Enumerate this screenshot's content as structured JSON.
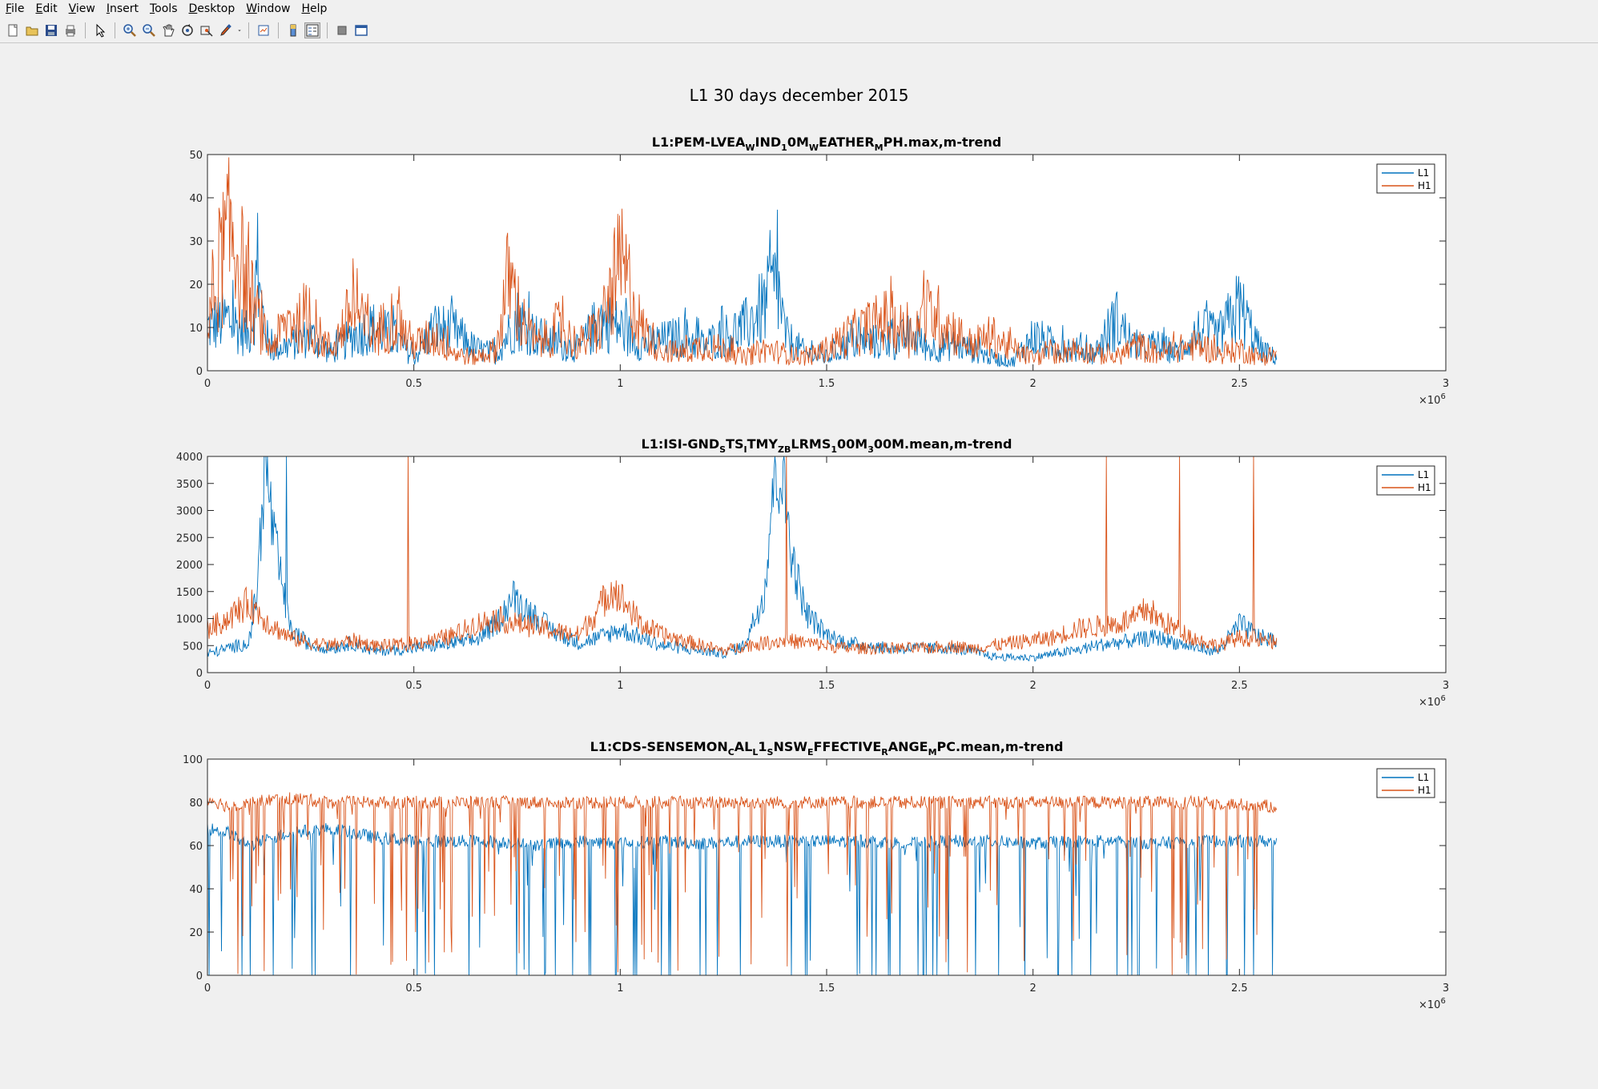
{
  "menu": [
    "File",
    "Edit",
    "View",
    "Insert",
    "Tools",
    "Desktop",
    "Window",
    "Help"
  ],
  "toolbar": [
    "new-figure-icon",
    "open-file-icon",
    "save-icon",
    "print-icon",
    "edit-plot-arrow-icon",
    "zoom-in-icon",
    "zoom-out-icon",
    "pan-hand-icon",
    "rotate-3d-icon",
    "data-cursor-icon",
    "brush-icon",
    "brush-dropdown-icon",
    "link-plot-icon",
    "insert-colorbar-icon",
    "insert-legend-icon",
    "hide-plot-tools-icon",
    "show-plot-tools-icon"
  ],
  "figure_title": "L1 30 days december 2015",
  "colors": {
    "L1": "#0072BD",
    "H1": "#D95319"
  },
  "chart_data": [
    {
      "type": "line",
      "title_parts": [
        {
          "t": "L1:PEM-LVEA"
        },
        {
          "t": "W",
          "sub": true
        },
        {
          "t": "IND"
        },
        {
          "t": "1",
          "sub": true
        },
        {
          "t": "0M"
        },
        {
          "t": "W",
          "sub": true
        },
        {
          "t": "EATHER"
        },
        {
          "t": "M",
          "sub": true
        },
        {
          "t": "PH.max,m-trend"
        }
      ],
      "xlim": [
        0,
        3
      ],
      "x_exponent": "6",
      "ylim": [
        0,
        50
      ],
      "xticks": [
        "0",
        "0.5",
        "1",
        "1.5",
        "2",
        "2.5",
        "3"
      ],
      "yticks": [
        "0",
        "10",
        "20",
        "30",
        "40",
        "50"
      ],
      "legend": [
        "L1",
        "H1"
      ],
      "legend_position": "top-right",
      "x_data_end": 2.59,
      "series": [
        {
          "name": "L1",
          "x": [
            0,
            0.05,
            0.1,
            0.12,
            0.15,
            0.2,
            0.25,
            0.3,
            0.35,
            0.4,
            0.45,
            0.5,
            0.55,
            0.6,
            0.65,
            0.7,
            0.75,
            0.8,
            0.85,
            0.9,
            0.95,
            1.0,
            1.05,
            1.1,
            1.15,
            1.2,
            1.25,
            1.3,
            1.35,
            1.38,
            1.4,
            1.45,
            1.5,
            1.55,
            1.6,
            1.65,
            1.7,
            1.75,
            1.8,
            1.85,
            1.9,
            1.95,
            2.0,
            2.05,
            2.1,
            2.15,
            2.2,
            2.25,
            2.3,
            2.35,
            2.4,
            2.45,
            2.5,
            2.55,
            2.59
          ],
          "y": [
            10,
            12,
            8,
            20,
            5,
            6,
            8,
            4,
            8,
            10,
            8,
            3,
            10,
            9,
            5,
            4,
            12,
            8,
            6,
            5,
            12,
            10,
            6,
            7,
            8,
            6,
            8,
            10,
            15,
            20,
            8,
            4,
            3,
            6,
            7,
            6,
            8,
            5,
            6,
            5,
            3,
            2,
            8,
            6,
            5,
            4,
            12,
            5,
            6,
            4,
            9,
            8,
            15,
            5,
            3
          ]
        },
        {
          "name": "H1",
          "x": [
            0,
            0.03,
            0.06,
            0.1,
            0.15,
            0.2,
            0.25,
            0.3,
            0.35,
            0.4,
            0.45,
            0.5,
            0.55,
            0.6,
            0.65,
            0.7,
            0.73,
            0.76,
            0.8,
            0.85,
            0.9,
            0.95,
            1.0,
            1.02,
            1.05,
            1.1,
            1.15,
            1.2,
            1.25,
            1.3,
            1.35,
            1.4,
            1.45,
            1.5,
            1.55,
            1.6,
            1.65,
            1.7,
            1.75,
            1.8,
            1.85,
            1.9,
            1.95,
            2.0,
            2.05,
            2.1,
            2.15,
            2.2,
            2.25,
            2.3,
            2.35,
            2.4,
            2.45,
            2.5,
            2.55,
            2.59
          ],
          "y": [
            8,
            25,
            32,
            18,
            5,
            12,
            10,
            5,
            14,
            8,
            12,
            6,
            8,
            4,
            3,
            5,
            22,
            12,
            6,
            10,
            6,
            10,
            24,
            20,
            10,
            5,
            4,
            6,
            5,
            3,
            5,
            4,
            3,
            5,
            8,
            10,
            12,
            8,
            14,
            10,
            6,
            8,
            5,
            3,
            4,
            5,
            4,
            3,
            6,
            4,
            5,
            6,
            4,
            5,
            3,
            4
          ]
        }
      ]
    },
    {
      "type": "line",
      "title_parts": [
        {
          "t": "L1:ISI-GND"
        },
        {
          "t": "S",
          "sub": true
        },
        {
          "t": "TS"
        },
        {
          "t": "I",
          "sub": true
        },
        {
          "t": "TMY"
        },
        {
          "t": "ZB",
          "sub": true
        },
        {
          "t": "LRMS"
        },
        {
          "t": "1",
          "sub": true
        },
        {
          "t": "00M"
        },
        {
          "t": "3",
          "sub": true
        },
        {
          "t": "00M.mean,m-trend"
        }
      ],
      "xlim": [
        0,
        3
      ],
      "x_exponent": "6",
      "ylim": [
        0,
        4000
      ],
      "xticks": [
        "0",
        "0.5",
        "1",
        "1.5",
        "2",
        "2.5",
        "3"
      ],
      "yticks": [
        "0",
        "500",
        "1000",
        "1500",
        "2000",
        "2500",
        "3000",
        "3500",
        "4000"
      ],
      "legend": [
        "L1",
        "H1"
      ],
      "legend_position": "top-right",
      "x_data_end": 2.59,
      "series": [
        {
          "name": "L1",
          "x": [
            0,
            0.05,
            0.1,
            0.12,
            0.14,
            0.16,
            0.2,
            0.25,
            0.3,
            0.35,
            0.4,
            0.45,
            0.5,
            0.55,
            0.6,
            0.65,
            0.7,
            0.74,
            0.8,
            0.85,
            0.9,
            0.95,
            1.0,
            1.05,
            1.1,
            1.15,
            1.2,
            1.25,
            1.3,
            1.35,
            1.37,
            1.39,
            1.42,
            1.45,
            1.5,
            1.55,
            1.6,
            1.65,
            1.7,
            1.75,
            1.8,
            1.85,
            1.9,
            1.95,
            2.0,
            2.05,
            2.1,
            2.15,
            2.2,
            2.25,
            2.3,
            2.35,
            2.4,
            2.45,
            2.5,
            2.55,
            2.59
          ],
          "y": [
            350,
            450,
            550,
            1500,
            4000,
            2500,
            800,
            500,
            450,
            550,
            400,
            420,
            450,
            500,
            550,
            600,
            900,
            1400,
            1000,
            700,
            550,
            650,
            800,
            650,
            500,
            450,
            400,
            350,
            500,
            1500,
            3500,
            3800,
            2000,
            1100,
            700,
            550,
            500,
            450,
            450,
            450,
            450,
            400,
            300,
            280,
            280,
            350,
            400,
            500,
            550,
            600,
            650,
            550,
            450,
            400,
            900,
            650,
            600
          ]
        },
        {
          "name": "H1",
          "x": [
            0,
            0.05,
            0.1,
            0.15,
            0.2,
            0.25,
            0.3,
            0.35,
            0.4,
            0.45,
            0.5,
            0.55,
            0.6,
            0.65,
            0.7,
            0.75,
            0.8,
            0.85,
            0.9,
            0.95,
            0.98,
            1.0,
            1.05,
            1.1,
            1.15,
            1.2,
            1.25,
            1.3,
            1.35,
            1.4,
            1.45,
            1.5,
            1.55,
            1.6,
            1.65,
            1.7,
            1.75,
            1.8,
            1.85,
            1.9,
            1.95,
            2.0,
            2.05,
            2.1,
            2.15,
            2.2,
            2.25,
            2.28,
            2.3,
            2.35,
            2.4,
            2.45,
            2.5,
            2.55,
            2.59
          ],
          "y": [
            800,
            1000,
            1300,
            900,
            650,
            550,
            500,
            600,
            500,
            500,
            550,
            600,
            700,
            900,
            1000,
            900,
            850,
            750,
            700,
            1200,
            1600,
            1400,
            900,
            700,
            600,
            500,
            400,
            500,
            550,
            600,
            550,
            500,
            450,
            450,
            450,
            450,
            450,
            500,
            450,
            500,
            550,
            600,
            650,
            800,
            850,
            900,
            1000,
            1200,
            1000,
            800,
            600,
            500,
            650,
            600,
            550
          ]
        }
      ]
    },
    {
      "type": "line",
      "title_parts": [
        {
          "t": "L1:CDS-SENSEMON"
        },
        {
          "t": "C",
          "sub": true
        },
        {
          "t": "AL"
        },
        {
          "t": "L",
          "sub": true
        },
        {
          "t": "1"
        },
        {
          "t": "S",
          "sub": true
        },
        {
          "t": "NSW"
        },
        {
          "t": "E",
          "sub": true
        },
        {
          "t": "FFECTIVE"
        },
        {
          "t": "R",
          "sub": true
        },
        {
          "t": "ANGE"
        },
        {
          "t": "M",
          "sub": true
        },
        {
          "t": "PC.mean,m-trend"
        }
      ],
      "xlim": [
        0,
        3
      ],
      "x_exponent": "6",
      "ylim": [
        0,
        100
      ],
      "xticks": [
        "0",
        "0.5",
        "1",
        "1.5",
        "2",
        "2.5",
        "3"
      ],
      "yticks": [
        "0",
        "20",
        "40",
        "60",
        "80",
        "100"
      ],
      "legend": [
        "L1",
        "H1"
      ],
      "legend_position": "top-right",
      "x_data_end": 2.59,
      "series": [
        {
          "name": "L1",
          "level": 62,
          "x": [
            0,
            0.05,
            0.1,
            0.2,
            0.3,
            0.4,
            0.5,
            0.6,
            0.7,
            0.8,
            0.9,
            1.0,
            1.1,
            1.2,
            1.3,
            1.4,
            1.5,
            1.6,
            1.7,
            1.8,
            1.9,
            2.0,
            2.1,
            2.2,
            2.3,
            2.4,
            2.5,
            2.59
          ],
          "y": [
            68,
            66,
            60,
            66,
            68,
            64,
            62,
            62,
            62,
            60,
            62,
            61,
            62,
            61,
            62,
            62,
            62,
            62,
            61,
            62,
            62,
            61,
            62,
            62,
            61,
            62,
            62,
            62
          ]
        },
        {
          "name": "H1",
          "level": 80,
          "x": [
            0,
            0.05,
            0.1,
            0.2,
            0.3,
            0.4,
            0.5,
            0.6,
            0.7,
            0.8,
            0.9,
            1.0,
            1.1,
            1.2,
            1.3,
            1.4,
            1.5,
            1.6,
            1.7,
            1.8,
            1.9,
            2.0,
            2.1,
            2.2,
            2.3,
            2.4,
            2.5,
            2.59
          ],
          "y": [
            82,
            78,
            80,
            82,
            80,
            80,
            80,
            80,
            80,
            80,
            80,
            80,
            80,
            80,
            80,
            80,
            80,
            80,
            80,
            80,
            80,
            80,
            80,
            80,
            80,
            80,
            79,
            78
          ]
        }
      ]
    }
  ]
}
